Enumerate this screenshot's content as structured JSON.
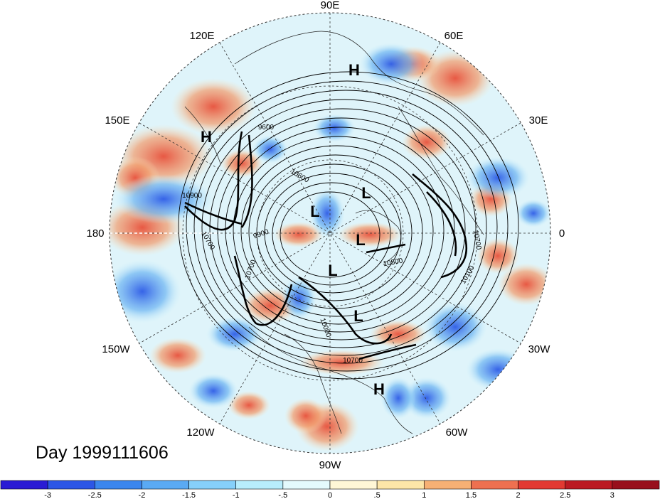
{
  "longitude_labels": [
    {
      "text": "90E",
      "key": "lon-90e"
    },
    {
      "text": "60E",
      "key": "lon-60e"
    },
    {
      "text": "120E",
      "key": "lon-120e"
    },
    {
      "text": "30E",
      "key": "lon-30e"
    },
    {
      "text": "150E",
      "key": "lon-150e"
    },
    {
      "text": "180",
      "key": "lon-180"
    },
    {
      "text": "0",
      "key": "lon-0"
    },
    {
      "text": "150W",
      "key": "lon-150w"
    },
    {
      "text": "30W",
      "key": "lon-30w"
    },
    {
      "text": "120W",
      "key": "lon-120w"
    },
    {
      "text": "60W",
      "key": "lon-60w"
    },
    {
      "text": "90W",
      "key": "lon-90w"
    }
  ],
  "pressure_markers": [
    "H",
    "H",
    "L",
    "L",
    "L",
    "L",
    "H",
    "L"
  ],
  "contour_labels": [
    "10900",
    "10700",
    "9900",
    "9600",
    "10700",
    "10500",
    "10100",
    "10000",
    "10700",
    "10700",
    "10600"
  ],
  "date_label": "Day 1999111606",
  "colorbar": {
    "ticks": [
      "-3",
      "-2.5",
      "-2",
      "-1.5",
      "-1",
      "-.5",
      "0",
      ".5",
      "1",
      "1.5",
      "2",
      "2.5",
      "3"
    ],
    "colors": [
      "#2a1bd4",
      "#2c56e6",
      "#3b86ee",
      "#5aaaf4",
      "#86d0fa",
      "#b8edfc",
      "#e4fafd",
      "#fff7d6",
      "#fde6a8",
      "#f7b074",
      "#ee7050",
      "#e23a32",
      "#bb1a22",
      "#98101c"
    ]
  }
}
